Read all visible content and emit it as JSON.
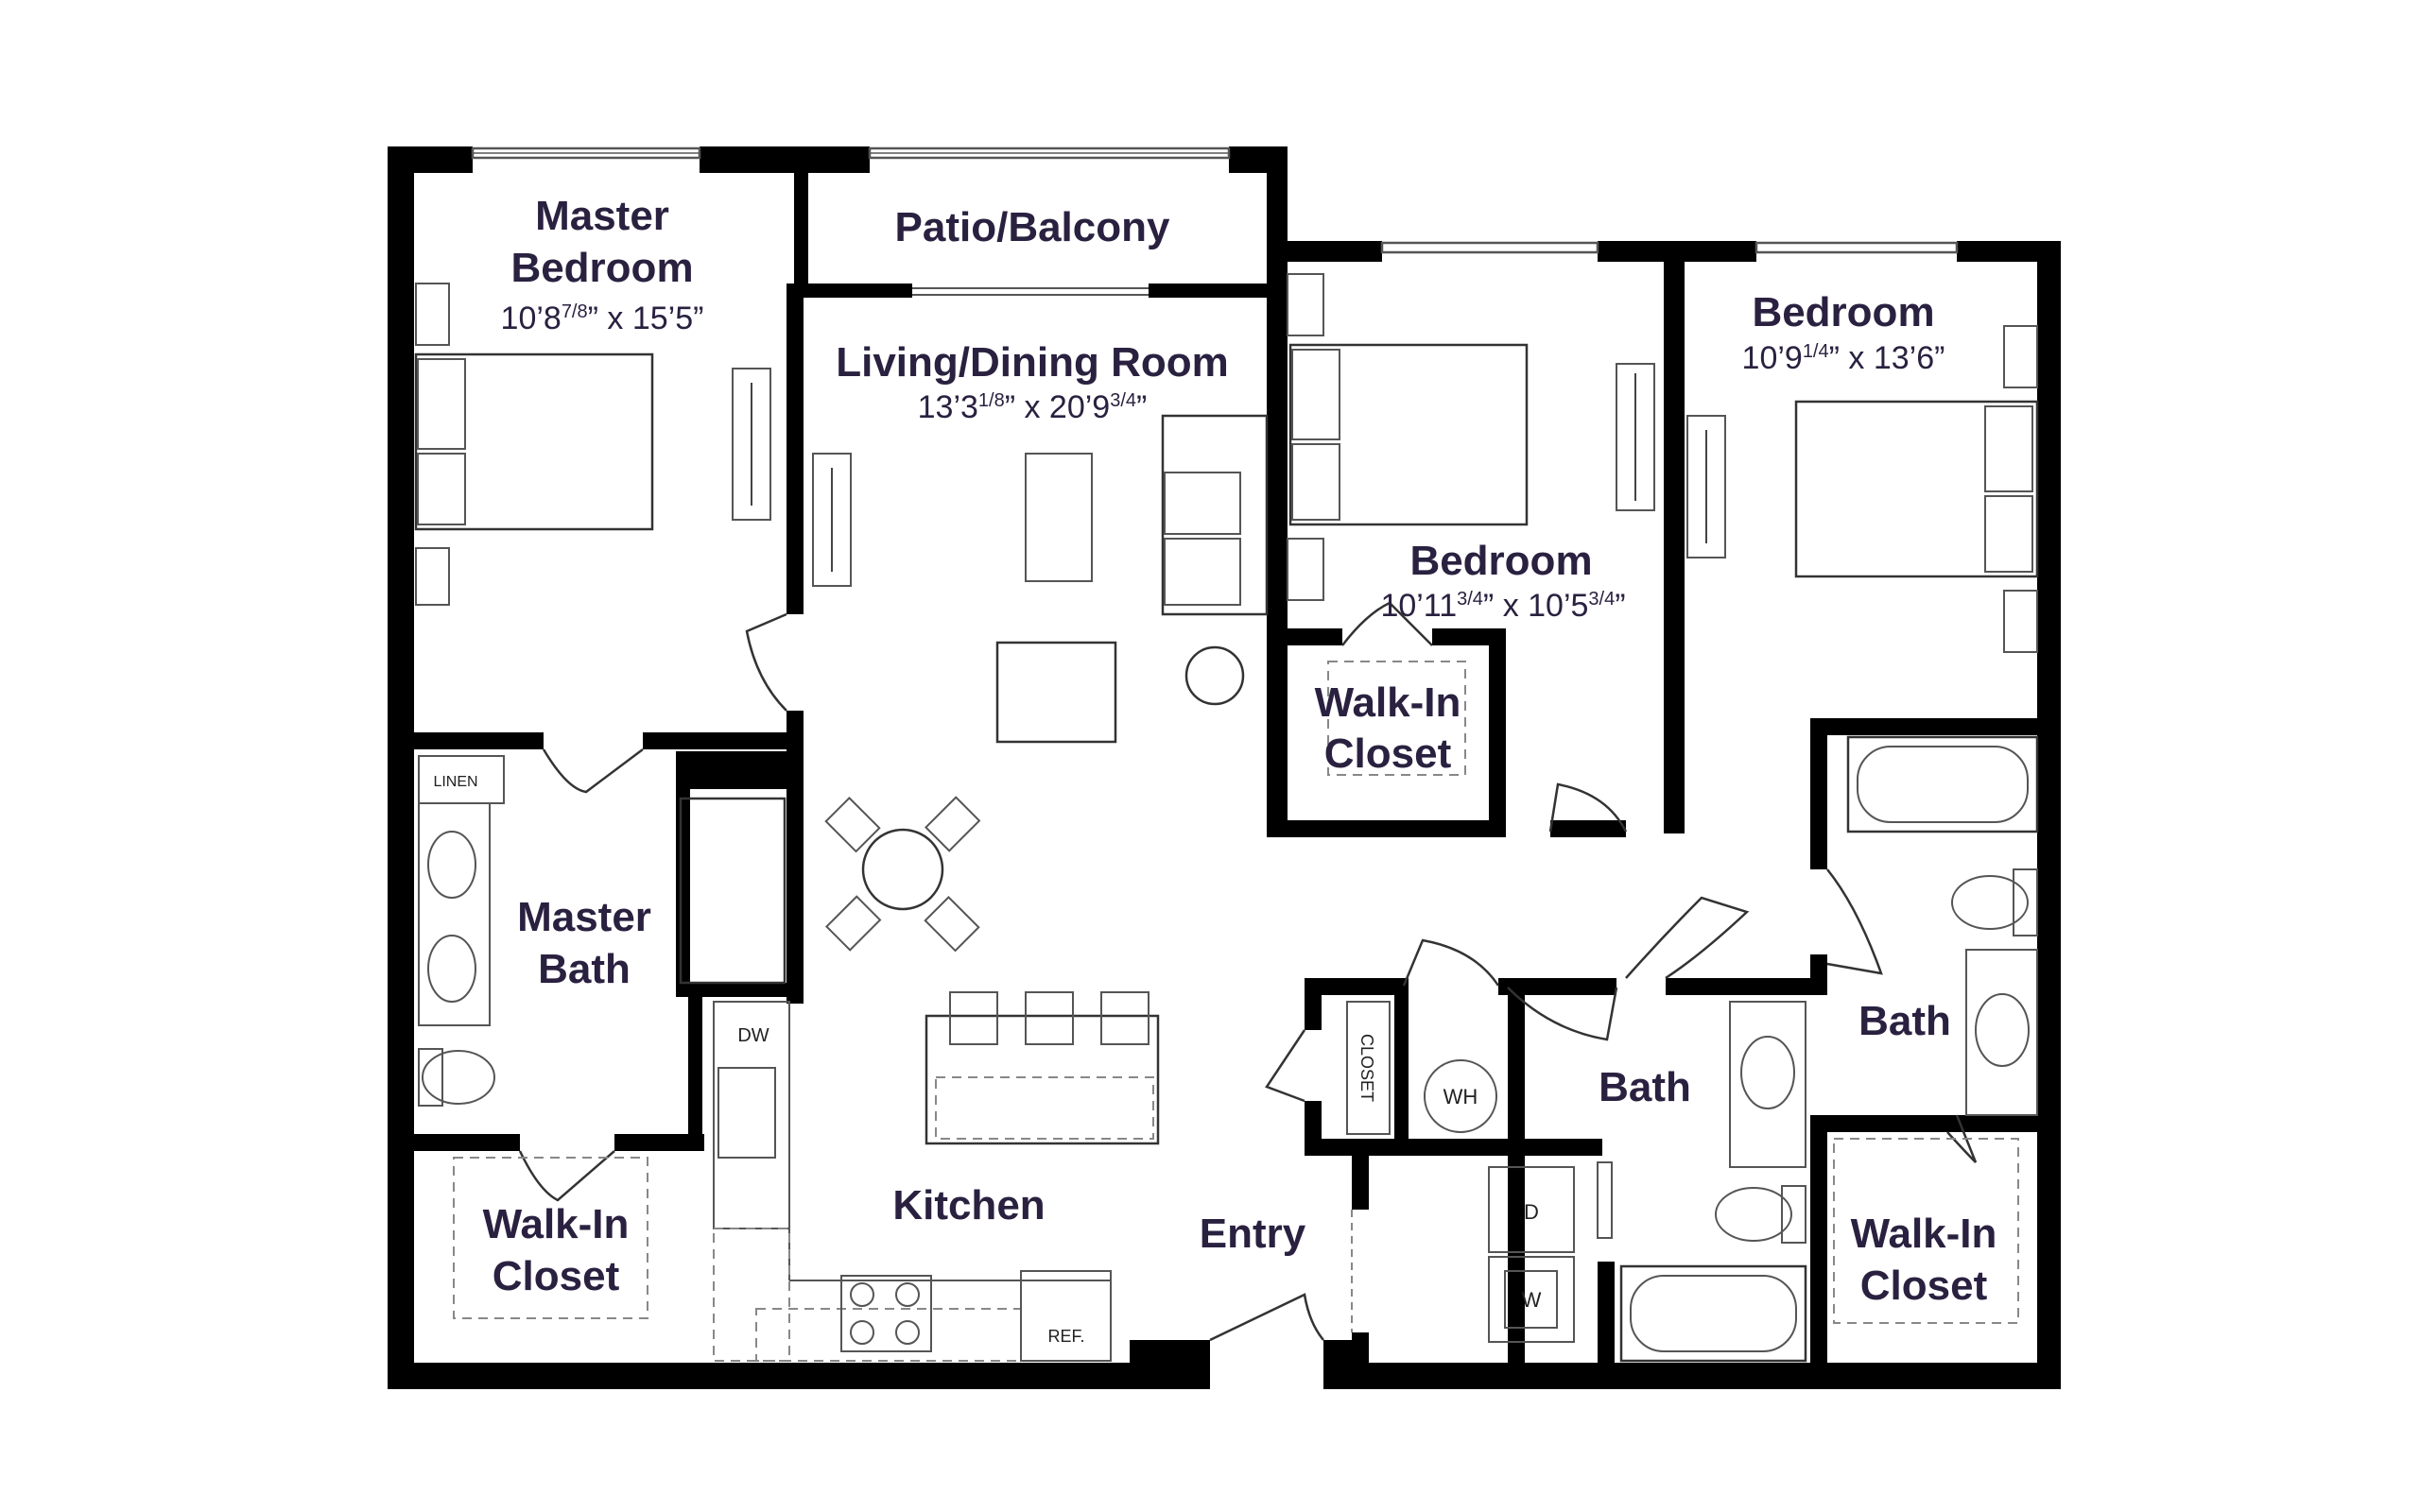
{
  "floor_plan": {
    "rooms": {
      "master_bedroom": {
        "line1": "Master",
        "line2": "Bedroom",
        "dim_a": "10’8",
        "dim_a_sup": "7/8",
        "dim_b": "” x 15’5”"
      },
      "patio": {
        "label": "Patio/Balcony"
      },
      "living": {
        "label": "Living/Dining Room",
        "dim_a": "13’3",
        "dim_a_sup": "1/8",
        "dim_b": "” x 20’9",
        "dim_b_sup": "3/4",
        "dim_c": "”"
      },
      "bedroom_mid": {
        "label": "Bedroom",
        "dim_a": "10’11",
        "dim_a_sup": "3/4",
        "dim_b": "” x 10’5",
        "dim_b_sup": "3/4",
        "dim_c": "”"
      },
      "bedroom_right": {
        "label": "Bedroom",
        "dim_a": "10’9",
        "dim_a_sup": "1/4",
        "dim_b": "” x 13’6”"
      },
      "walkin_mid": {
        "line1": "Walk-In",
        "line2": "Closet"
      },
      "master_bath": {
        "line1": "Master",
        "line2": "Bath"
      },
      "walkin_left": {
        "line1": "Walk-In",
        "line2": "Closet"
      },
      "kitchen": {
        "label": "Kitchen"
      },
      "entry": {
        "label": "Entry"
      },
      "bath_mid": {
        "label": "Bath"
      },
      "bath_right": {
        "label": "Bath"
      },
      "walkin_right": {
        "line1": "Walk-In",
        "line2": "Closet"
      }
    },
    "fixtures": {
      "linen": "LINEN",
      "dw": "DW",
      "closet": "CLOSET",
      "wh": "WH",
      "dryer": "D",
      "washer": "W",
      "ref": "REF."
    },
    "colors": {
      "wall": "#000000",
      "label": "#2a2140"
    }
  }
}
